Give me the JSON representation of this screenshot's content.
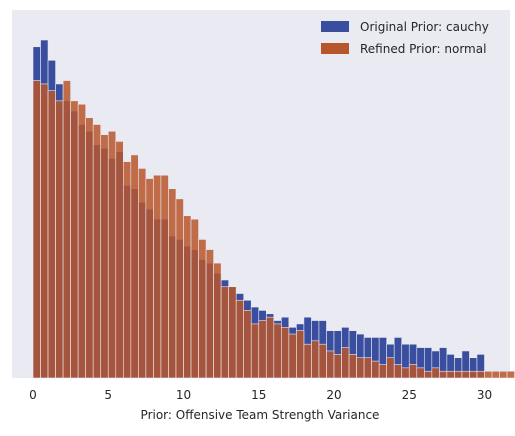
{
  "chart_data": {
    "type": "histogram",
    "title": "",
    "xlabel": "Prior: Offensive Team Strength Variance",
    "ylabel": "",
    "xlim": [
      -1.5,
      31.5
    ],
    "ylim": [
      0,
      1
    ],
    "y_axis_ticks_visible": false,
    "x_ticks": [
      0,
      5,
      10,
      15,
      20,
      25,
      30
    ],
    "grid": false,
    "background_color": "#EAEAF2",
    "legend": {
      "position": "top-right",
      "entries": [
        "Original Prior: cauchy",
        "Refined Prior: normal"
      ]
    },
    "bin_width": 0.5,
    "series": [
      {
        "name": "Original Prior: cauchy",
        "color": "#3A4EA0",
        "alpha": 1.0,
        "bin_start": 0.0,
        "values": [
          0.98,
          1.0,
          0.94,
          0.87,
          0.82,
          0.79,
          0.75,
          0.73,
          0.69,
          0.68,
          0.65,
          0.67,
          0.57,
          0.56,
          0.52,
          0.5,
          0.47,
          0.47,
          0.42,
          0.41,
          0.39,
          0.38,
          0.35,
          0.34,
          0.31,
          0.29,
          0.27,
          0.25,
          0.23,
          0.21,
          0.2,
          0.19,
          0.17,
          0.18,
          0.15,
          0.16,
          0.18,
          0.17,
          0.17,
          0.14,
          0.14,
          0.15,
          0.14,
          0.13,
          0.12,
          0.12,
          0.12,
          0.1,
          0.12,
          0.1,
          0.1,
          0.09,
          0.09,
          0.08,
          0.09,
          0.07,
          0.06,
          0.08,
          0.06,
          0.07
        ]
      },
      {
        "name": "Refined Prior: normal",
        "color": "#B8562B",
        "alpha": 0.85,
        "bin_start": 0.0,
        "values": [
          0.88,
          0.87,
          0.85,
          0.82,
          0.88,
          0.82,
          0.81,
          0.77,
          0.75,
          0.72,
          0.73,
          0.7,
          0.64,
          0.66,
          0.62,
          0.59,
          0.6,
          0.6,
          0.56,
          0.53,
          0.48,
          0.47,
          0.41,
          0.38,
          0.34,
          0.27,
          0.27,
          0.23,
          0.2,
          0.16,
          0.17,
          0.18,
          0.16,
          0.15,
          0.13,
          0.14,
          0.1,
          0.11,
          0.1,
          0.08,
          0.07,
          0.09,
          0.07,
          0.06,
          0.06,
          0.05,
          0.04,
          0.06,
          0.04,
          0.03,
          0.04,
          0.03,
          0.02,
          0.03,
          0.02,
          0.02,
          0.02,
          0.02,
          0.02,
          0.02,
          0.02,
          0.02,
          0.02,
          0.02,
          0.01,
          0.01
        ]
      }
    ]
  }
}
